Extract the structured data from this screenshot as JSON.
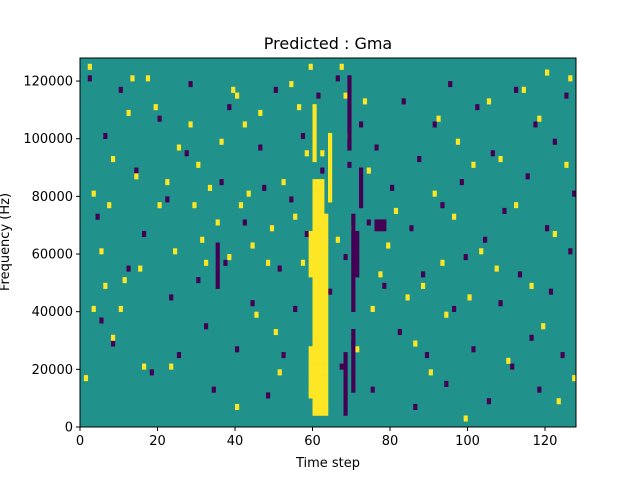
{
  "chart_data": {
    "type": "heatmap",
    "title": "Predicted : Gma",
    "xlabel": "Time step",
    "ylabel": "Frequency (Hz)",
    "xlim": [
      0,
      128
    ],
    "ylim": [
      0,
      128000
    ],
    "xticks": [
      0,
      20,
      40,
      60,
      80,
      100,
      120
    ],
    "yticks": [
      0,
      20000,
      40000,
      60000,
      80000,
      100000,
      120000
    ],
    "grid": false,
    "legend": "none",
    "colormap": "viridis",
    "colors": {
      "background": "#21918c",
      "high": "#fde725",
      "low": "#440154"
    },
    "columns": 128,
    "rows": 64,
    "row_height_hz": 2000,
    "cells": {
      "high": [
        [
          1,
          8
        ],
        [
          2,
          62
        ],
        [
          3,
          40
        ],
        [
          3,
          20
        ],
        [
          5,
          30
        ],
        [
          6,
          24
        ],
        [
          7,
          38
        ],
        [
          8,
          46
        ],
        [
          8,
          15
        ],
        [
          10,
          20
        ],
        [
          11,
          25
        ],
        [
          12,
          54
        ],
        [
          13,
          60
        ],
        [
          14,
          43
        ],
        [
          15,
          27
        ],
        [
          16,
          10
        ],
        [
          17,
          60
        ],
        [
          19,
          55
        ],
        [
          20,
          38
        ],
        [
          22,
          42
        ],
        [
          23,
          10
        ],
        [
          24,
          30
        ],
        [
          25,
          48
        ],
        [
          28,
          52
        ],
        [
          29,
          38
        ],
        [
          30,
          45
        ],
        [
          31,
          32
        ],
        [
          32,
          28
        ],
        [
          33,
          41
        ],
        [
          35,
          35
        ],
        [
          36,
          49
        ],
        [
          38,
          29
        ],
        [
          39,
          58
        ],
        [
          40,
          3
        ],
        [
          40,
          57
        ],
        [
          41,
          38
        ],
        [
          42,
          52
        ],
        [
          43,
          40
        ],
        [
          44,
          31
        ],
        [
          45,
          19
        ],
        [
          46,
          54
        ],
        [
          48,
          28
        ],
        [
          49,
          34
        ],
        [
          50,
          16
        ],
        [
          51,
          9
        ],
        [
          52,
          42
        ],
        [
          54,
          59
        ],
        [
          55,
          36
        ],
        [
          56,
          55
        ],
        [
          57,
          28
        ],
        [
          58,
          47
        ],
        [
          59,
          62
        ],
        [
          60,
          33
        ],
        [
          61,
          8
        ],
        [
          62,
          47
        ],
        [
          66,
          32
        ],
        [
          67,
          62
        ],
        [
          68,
          57
        ],
        [
          69,
          50
        ],
        [
          70,
          34
        ],
        [
          71,
          13
        ],
        [
          73,
          56
        ],
        [
          74,
          44
        ],
        [
          75,
          20
        ],
        [
          77,
          26
        ],
        [
          79,
          31
        ],
        [
          81,
          37
        ],
        [
          84,
          22
        ],
        [
          86,
          14
        ],
        [
          88,
          24
        ],
        [
          90,
          9
        ],
        [
          91,
          40
        ],
        [
          92,
          53
        ],
        [
          93,
          28
        ],
        [
          94,
          19
        ],
        [
          96,
          36
        ],
        [
          97,
          49
        ],
        [
          99,
          1
        ],
        [
          100,
          22
        ],
        [
          101,
          45
        ],
        [
          103,
          30
        ],
        [
          105,
          56
        ],
        [
          107,
          27
        ],
        [
          108,
          46
        ],
        [
          110,
          11
        ],
        [
          112,
          38
        ],
        [
          114,
          58
        ],
        [
          116,
          24
        ],
        [
          118,
          53
        ],
        [
          119,
          17
        ],
        [
          120,
          61
        ],
        [
          122,
          33
        ],
        [
          123,
          4
        ],
        [
          125,
          45
        ],
        [
          126,
          60
        ],
        [
          127,
          8
        ]
      ],
      "low": [
        [
          2,
          60
        ],
        [
          4,
          36
        ],
        [
          5,
          18
        ],
        [
          6,
          50
        ],
        [
          8,
          14
        ],
        [
          10,
          58
        ],
        [
          12,
          27
        ],
        [
          14,
          44
        ],
        [
          16,
          33
        ],
        [
          18,
          9
        ],
        [
          20,
          53
        ],
        [
          22,
          39
        ],
        [
          23,
          22
        ],
        [
          25,
          12
        ],
        [
          27,
          47
        ],
        [
          28,
          59
        ],
        [
          30,
          25
        ],
        [
          32,
          17
        ],
        [
          34,
          6
        ],
        [
          36,
          42
        ],
        [
          37,
          28
        ],
        [
          38,
          55
        ],
        [
          40,
          13
        ],
        [
          42,
          35
        ],
        [
          44,
          21
        ],
        [
          46,
          48
        ],
        [
          47,
          41
        ],
        [
          48,
          5
        ],
        [
          50,
          58
        ],
        [
          51,
          27
        ],
        [
          52,
          12
        ],
        [
          54,
          39
        ],
        [
          55,
          20
        ],
        [
          57,
          50
        ],
        [
          58,
          33
        ],
        [
          61,
          57
        ],
        [
          62,
          44
        ],
        [
          64,
          23
        ],
        [
          66,
          60
        ],
        [
          67,
          10
        ],
        [
          68,
          29
        ],
        [
          69,
          45
        ],
        [
          70,
          14
        ],
        [
          72,
          52
        ],
        [
          74,
          35
        ],
        [
          75,
          6
        ],
        [
          76,
          48
        ],
        [
          78,
          24
        ],
        [
          80,
          41
        ],
        [
          82,
          16
        ],
        [
          83,
          56
        ],
        [
          85,
          34
        ],
        [
          86,
          3
        ],
        [
          87,
          46
        ],
        [
          88,
          26
        ],
        [
          89,
          12
        ],
        [
          91,
          52
        ],
        [
          93,
          38
        ],
        [
          94,
          7
        ],
        [
          95,
          59
        ],
        [
          96,
          20
        ],
        [
          98,
          42
        ],
        [
          99,
          29
        ],
        [
          101,
          13
        ],
        [
          102,
          55
        ],
        [
          104,
          32
        ],
        [
          105,
          4
        ],
        [
          106,
          47
        ],
        [
          108,
          21
        ],
        [
          109,
          37
        ],
        [
          111,
          10
        ],
        [
          112,
          58
        ],
        [
          113,
          26
        ],
        [
          115,
          43
        ],
        [
          116,
          15
        ],
        [
          117,
          52
        ],
        [
          118,
          6
        ],
        [
          120,
          34
        ],
        [
          121,
          23
        ],
        [
          122,
          49
        ],
        [
          124,
          12
        ],
        [
          125,
          57
        ],
        [
          126,
          30
        ],
        [
          127,
          40
        ]
      ],
      "high_bands": [
        {
          "cols": [
            60,
            61,
            62
          ],
          "rows": [
            2,
            42
          ]
        },
        {
          "cols": [
            63
          ],
          "rows": [
            2,
            36
          ]
        },
        {
          "cols": [
            59
          ],
          "rows": [
            5,
            13
          ]
        },
        {
          "cols": [
            59
          ],
          "rows": [
            26,
            33
          ]
        },
        {
          "cols": [
            60
          ],
          "rows": [
            46,
            55
          ]
        },
        {
          "cols": [
            64
          ],
          "rows": [
            39,
            50
          ]
        }
      ],
      "low_bands": [
        {
          "cols": [
            70
          ],
          "rows": [
            20,
            36
          ]
        },
        {
          "cols": [
            70
          ],
          "rows": [
            6,
            16
          ]
        },
        {
          "cols": [
            71
          ],
          "rows": [
            26,
            33
          ]
        },
        {
          "cols": [
            69
          ],
          "rows": [
            48,
            60
          ]
        },
        {
          "cols": [
            68
          ],
          "rows": [
            2,
            12
          ]
        },
        {
          "cols": [
            76,
            77,
            78
          ],
          "rows": [
            34,
            35
          ]
        },
        {
          "cols": [
            72
          ],
          "rows": [
            38,
            44
          ]
        },
        {
          "cols": [
            35
          ],
          "rows": [
            24,
            31
          ]
        }
      ]
    }
  }
}
